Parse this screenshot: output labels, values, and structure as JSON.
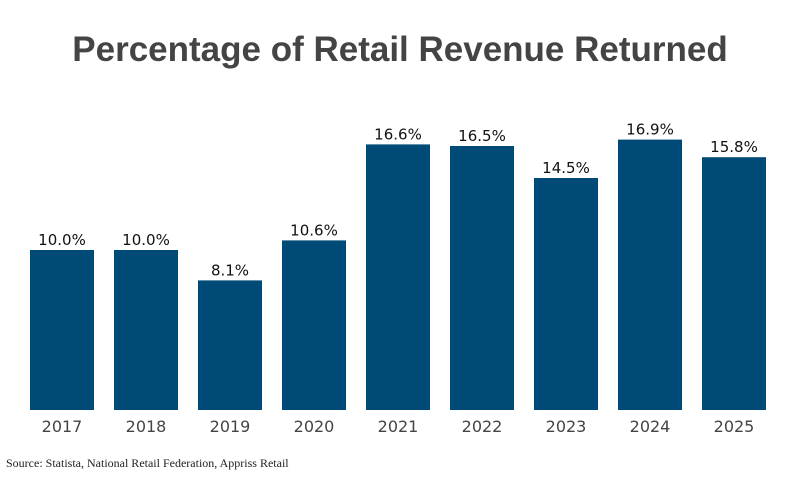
{
  "chart_data": {
    "type": "bar",
    "title": "Percentage of Retail Revenue Returned",
    "categories": [
      "2017",
      "2018",
      "2019",
      "2020",
      "2021",
      "2022",
      "2023",
      "2024",
      "2025"
    ],
    "values": [
      10.0,
      10.0,
      8.1,
      10.6,
      16.6,
      16.5,
      14.5,
      16.9,
      15.8
    ],
    "data_labels": [
      "10.0%",
      "10.0%",
      "8.1%",
      "10.6%",
      "16.6%",
      "16.5%",
      "14.5%",
      "16.9%",
      "15.8%"
    ],
    "xlabel": "",
    "ylabel": "",
    "ylim": [
      0,
      20
    ],
    "grid": false,
    "bar_color": "#004a78",
    "source": "Source: Statista, National Retail Federation, Appriss Retail"
  }
}
